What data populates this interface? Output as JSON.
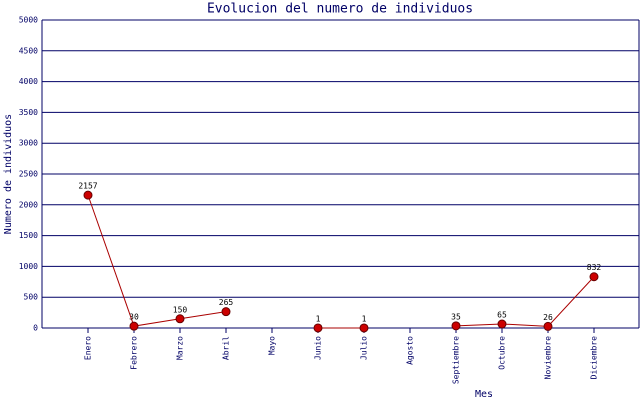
{
  "chart_data": {
    "type": "line",
    "title": "Evolucion del numero de individuos",
    "x_label": "Mes",
    "y_label": "Numero de individuos",
    "categories": [
      "Enero",
      "Febrero",
      "Marzo",
      "Abril",
      "Mayo",
      "Junio",
      "Julio",
      "Agosto",
      "Septiembre",
      "Octubre",
      "Noviembre",
      "Diciembre"
    ],
    "values": [
      2157,
      30,
      150,
      265,
      null,
      1,
      1,
      null,
      35,
      65,
      26,
      832
    ],
    "color": "#aa0000",
    "marker_color": "#cc0000",
    "ylim": [
      0,
      5000
    ],
    "yticks": [
      0,
      500,
      1000,
      1500,
      2000,
      2500,
      3000,
      3500,
      4000,
      4500,
      5000
    ],
    "grid": true
  }
}
